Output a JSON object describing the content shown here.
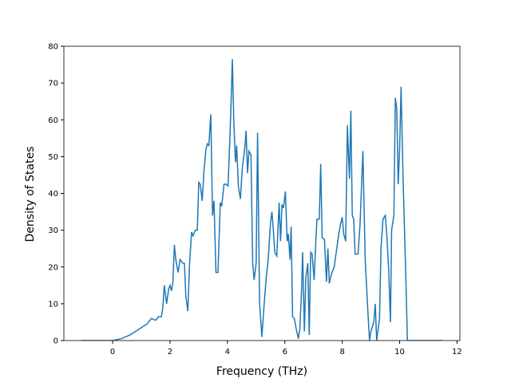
{
  "chart_data": {
    "type": "line",
    "x_label": "Frequency (THz)",
    "y_label": "Density of States",
    "xlim": [
      -1.7,
      12.1
    ],
    "ylim": [
      0,
      80
    ],
    "xticks": [
      0,
      2,
      4,
      6,
      8,
      10,
      12
    ],
    "yticks": [
      0,
      10,
      20,
      30,
      40,
      50,
      60,
      70,
      80
    ],
    "series": [
      {
        "color": "#1f77b4",
        "x": [
          -1.1,
          0,
          0.3,
          0.6,
          0.9,
          1.2,
          1.35,
          1.5,
          1.6,
          1.7,
          1.75,
          1.8,
          1.88,
          1.95,
          2.0,
          2.05,
          2.1,
          2.15,
          2.2,
          2.28,
          2.35,
          2.45,
          2.5,
          2.55,
          2.62,
          2.68,
          2.75,
          2.8,
          2.88,
          2.95,
          3.0,
          3.05,
          3.12,
          3.18,
          3.25,
          3.3,
          3.35,
          3.42,
          3.48,
          3.53,
          3.6,
          3.67,
          3.75,
          3.8,
          3.88,
          3.95,
          4.02,
          4.08,
          4.12,
          4.17,
          4.22,
          4.28,
          4.32,
          4.38,
          4.45,
          4.52,
          4.6,
          4.65,
          4.7,
          4.75,
          4.82,
          4.88,
          4.93,
          5.0,
          5.05,
          5.12,
          5.2,
          5.28,
          5.35,
          5.42,
          5.5,
          5.55,
          5.6,
          5.65,
          5.72,
          5.8,
          5.85,
          5.9,
          5.95,
          6.02,
          6.08,
          6.12,
          6.18,
          6.22,
          6.27,
          6.33,
          6.4,
          6.47,
          6.52,
          6.58,
          6.62,
          6.68,
          6.73,
          6.8,
          6.85,
          6.9,
          6.95,
          7.02,
          7.08,
          7.12,
          7.2,
          7.25,
          7.3,
          7.38,
          7.45,
          7.5,
          7.55,
          7.62,
          7.72,
          7.8,
          7.88,
          7.95,
          8.0,
          8.05,
          8.12,
          8.18,
          8.25,
          8.3,
          8.35,
          8.4,
          8.45,
          8.55,
          8.62,
          8.72,
          8.8,
          8.9,
          8.95,
          9.0,
          9.1,
          9.15,
          9.2,
          9.3,
          9.35,
          9.42,
          9.5,
          9.55,
          9.62,
          9.68,
          9.72,
          9.8,
          9.85,
          9.9,
          9.95,
          10.0,
          10.05,
          10.12,
          10.22,
          10.27,
          10.5,
          11.5
        ],
        "values": [
          0,
          0,
          0.5,
          1.5,
          3,
          4.5,
          6,
          5.5,
          6.5,
          6.5,
          9,
          15,
          10,
          14,
          15,
          13.5,
          16,
          26,
          22,
          18.5,
          22,
          21,
          21,
          12,
          8,
          21,
          29.5,
          28.5,
          30,
          30,
          43,
          42.5,
          38,
          46,
          52,
          53.5,
          53,
          61.5,
          34,
          38,
          18.5,
          18.5,
          37.5,
          36.5,
          42.5,
          42.5,
          42,
          54,
          63,
          76.5,
          60,
          48.5,
          53,
          42,
          38.5,
          47,
          52,
          57,
          45.5,
          51.5,
          50.5,
          21,
          16.5,
          21,
          56.5,
          10,
          1,
          10,
          17,
          22,
          32,
          35,
          30,
          24,
          23,
          37.5,
          27,
          37,
          36,
          40.5,
          27,
          29,
          22,
          31,
          6.5,
          6,
          3,
          0.5,
          3,
          13,
          24,
          2.5,
          17,
          21,
          1.5,
          24,
          23.5,
          16.5,
          27,
          33,
          33,
          48,
          28,
          27.5,
          16,
          25,
          15.5,
          18,
          20,
          24.5,
          29,
          32,
          33.5,
          29,
          27,
          58.5,
          44,
          62.5,
          34,
          33,
          23.5,
          23.5,
          31.5,
          51.5,
          22,
          7,
          0,
          2.5,
          5,
          10,
          0,
          6,
          25,
          33,
          34,
          29,
          19,
          5,
          30,
          34,
          66,
          63,
          42.5,
          52,
          69,
          44,
          16,
          0,
          0,
          0
        ]
      }
    ]
  }
}
